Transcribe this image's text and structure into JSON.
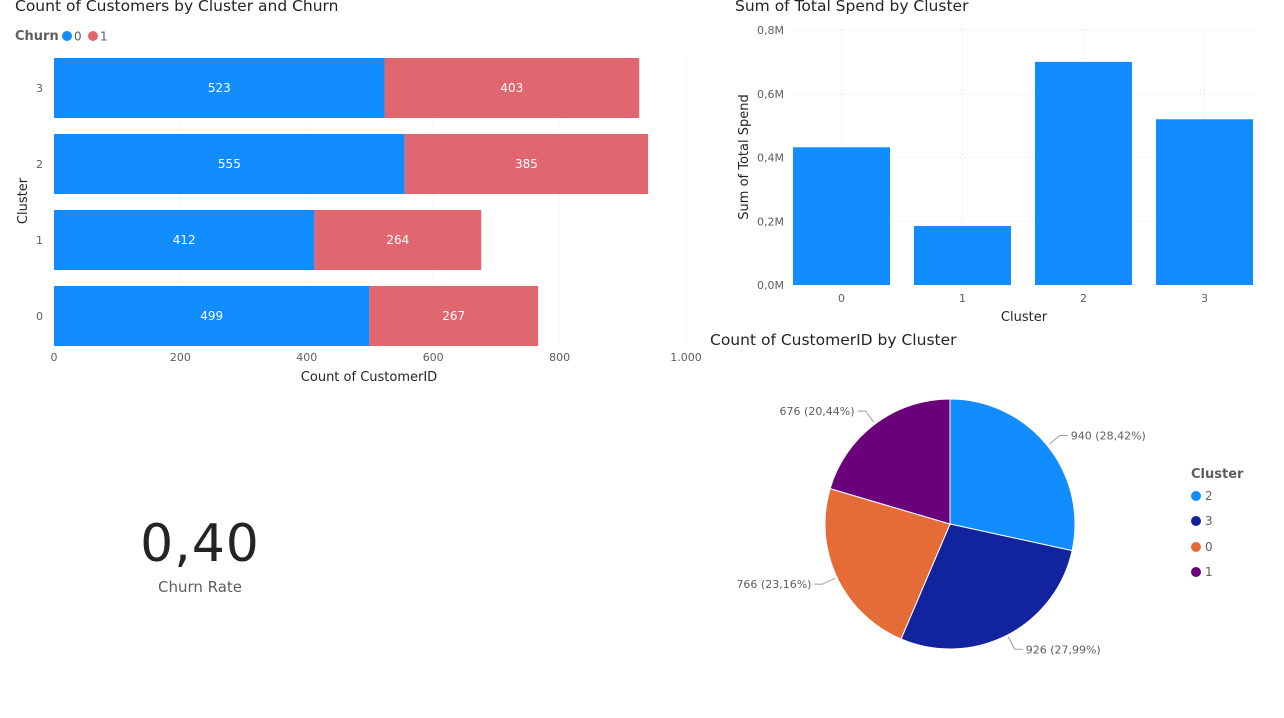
{
  "colors": {
    "churn0": "#118DFF",
    "churn1": "#E06670",
    "spend": "#118DFF",
    "pie": {
      "2": "#118DFF",
      "3": "#12239E",
      "0": "#E66C37",
      "1": "#6B007B"
    }
  },
  "card": {
    "value": "0,40",
    "label": "Churn Rate"
  },
  "chart_data": [
    {
      "type": "bar",
      "orientation": "horizontal",
      "stacked": true,
      "title": "Count of Customers by Cluster and Churn",
      "legend_title": "Churn",
      "legend_position": "top-left",
      "categories": [
        "3",
        "2",
        "1",
        "0"
      ],
      "series": [
        {
          "name": "0",
          "values": [
            523,
            555,
            412,
            499
          ]
        },
        {
          "name": "1",
          "values": [
            403,
            385,
            264,
            267
          ]
        }
      ],
      "xlabel": "Count of CustomerID",
      "ylabel": "Cluster",
      "xlim": [
        0,
        1000
      ],
      "xticks": [
        "0",
        "200",
        "400",
        "600",
        "800",
        "1.000"
      ],
      "grid": true
    },
    {
      "type": "bar",
      "title": "Sum of Total Spend by Cluster",
      "categories": [
        "0",
        "1",
        "2",
        "3"
      ],
      "values": [
        0.432,
        0.185,
        0.7,
        0.52
      ],
      "xlabel": "Cluster",
      "ylabel": "Sum of Total Spend",
      "ylim": [
        0,
        0.8
      ],
      "yticks": [
        "0,0M",
        "0,2M",
        "0,4M",
        "0,6M",
        "0,8M"
      ],
      "grid": true
    },
    {
      "type": "pie",
      "title": "Count of CustomerID by Cluster",
      "legend_title": "Cluster",
      "legend_position": "right",
      "slices": [
        {
          "label": "2",
          "value": 940,
          "display": "940 (28,42%)"
        },
        {
          "label": "3",
          "value": 926,
          "display": "926 (27,99%)"
        },
        {
          "label": "0",
          "value": 766,
          "display": "766 (23,16%)"
        },
        {
          "label": "1",
          "value": 676,
          "display": "676 (20,44%)"
        }
      ]
    }
  ]
}
